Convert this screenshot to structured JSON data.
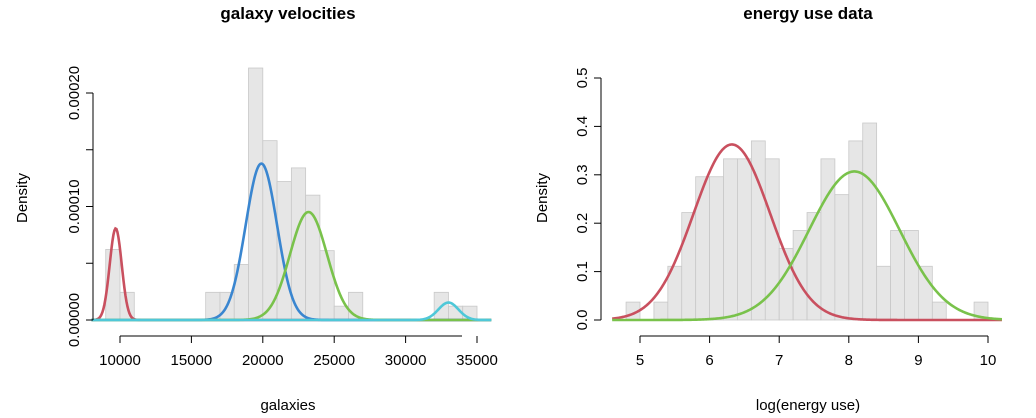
{
  "chart_data": [
    {
      "type": "bar",
      "title": "galaxy velocities",
      "xlabel": "galaxies",
      "ylabel": "Density",
      "xlim": [
        8000,
        36000
      ],
      "ylim": [
        0,
        0.00025
      ],
      "x_ticks": [
        10000,
        15000,
        20000,
        25000,
        30000,
        35000
      ],
      "y_ticks": [
        0,
        0.0001,
        0.0002
      ],
      "y_tick_labels": [
        "0.00000",
        "0.00010",
        "0.00020"
      ],
      "minor_y_ticks": [
        5e-05,
        0.00015
      ],
      "bin_width": 1000,
      "bins": [
        {
          "x0": 9000,
          "density": 6.22e-05
        },
        {
          "x0": 10000,
          "density": 2.44e-05
        },
        {
          "x0": 16000,
          "density": 2.44e-05
        },
        {
          "x0": 17000,
          "density": 2.44e-05
        },
        {
          "x0": 18000,
          "density": 4.89e-05
        },
        {
          "x0": 19000,
          "density": 0.000222
        },
        {
          "x0": 20000,
          "density": 0.000158
        },
        {
          "x0": 21000,
          "density": 0.000122
        },
        {
          "x0": 22000,
          "density": 0.000134
        },
        {
          "x0": 23000,
          "density": 0.00011
        },
        {
          "x0": 24000,
          "density": 6.11e-05
        },
        {
          "x0": 25000,
          "density": 1.22e-05
        },
        {
          "x0": 26000,
          "density": 2.44e-05
        },
        {
          "x0": 32000,
          "density": 2.44e-05
        },
        {
          "x0": 33000,
          "density": 1.22e-05
        },
        {
          "x0": 34000,
          "density": 1.22e-05
        }
      ],
      "series": [
        {
          "color": "#c9505f",
          "mean": 9700,
          "sd": 420,
          "weight": 0.085
        },
        {
          "color": "#3a86d0",
          "mean": 19900,
          "sd": 1100,
          "weight": 0.38
        },
        {
          "color": "#79c24b",
          "mean": 23200,
          "sd": 1300,
          "weight": 0.31
        },
        {
          "color": "#4fc8d8",
          "mean": 33000,
          "sd": 700,
          "weight": 0.027
        }
      ]
    },
    {
      "type": "bar",
      "title": "energy use data",
      "xlabel": "log(energy use)",
      "ylabel": "Density",
      "xlim": [
        4.6,
        10.2
      ],
      "ylim": [
        0,
        0.5
      ],
      "x_ticks": [
        5,
        6,
        7,
        8,
        9,
        10
      ],
      "y_ticks": [
        0,
        0.1,
        0.2,
        0.3,
        0.4,
        0.5
      ],
      "y_tick_labels": [
        "0.0",
        "0.1",
        "0.2",
        "0.3",
        "0.4",
        "0.5"
      ],
      "bin_width": 0.2,
      "bins": [
        {
          "x0": 4.8,
          "density": 0.037
        },
        {
          "x0": 5.2,
          "density": 0.037
        },
        {
          "x0": 5.4,
          "density": 0.111
        },
        {
          "x0": 5.6,
          "density": 0.222
        },
        {
          "x0": 5.8,
          "density": 0.296
        },
        {
          "x0": 6.0,
          "density": 0.296
        },
        {
          "x0": 6.2,
          "density": 0.333
        },
        {
          "x0": 6.4,
          "density": 0.333
        },
        {
          "x0": 6.6,
          "density": 0.37
        },
        {
          "x0": 6.8,
          "density": 0.333
        },
        {
          "x0": 7.0,
          "density": 0.148
        },
        {
          "x0": 7.2,
          "density": 0.185
        },
        {
          "x0": 7.4,
          "density": 0.222
        },
        {
          "x0": 7.6,
          "density": 0.333
        },
        {
          "x0": 7.8,
          "density": 0.259
        },
        {
          "x0": 8.0,
          "density": 0.37
        },
        {
          "x0": 8.2,
          "density": 0.407
        },
        {
          "x0": 8.4,
          "density": 0.111
        },
        {
          "x0": 8.6,
          "density": 0.185
        },
        {
          "x0": 8.8,
          "density": 0.185
        },
        {
          "x0": 9.0,
          "density": 0.111
        },
        {
          "x0": 9.2,
          "density": 0.037
        },
        {
          "x0": 9.8,
          "density": 0.037
        }
      ],
      "series": [
        {
          "color": "#c9505f",
          "mean": 6.32,
          "sd": 0.55,
          "weight": 0.5
        },
        {
          "color": "#79c24b",
          "mean": 8.08,
          "sd": 0.65,
          "weight": 0.5
        }
      ]
    }
  ]
}
